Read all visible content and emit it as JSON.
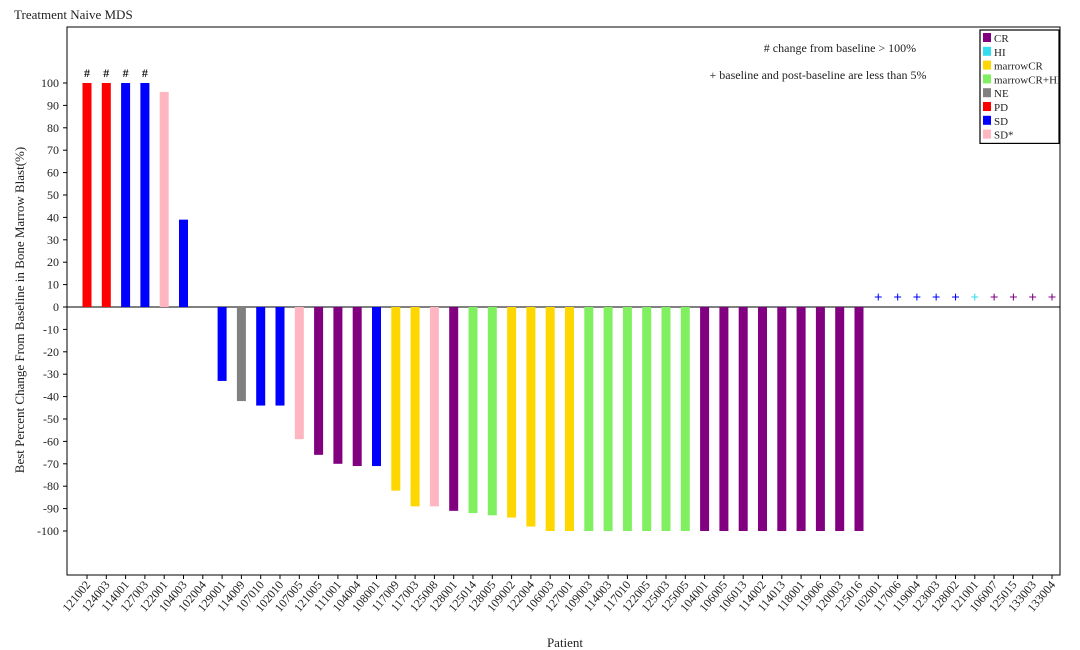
{
  "chart_data": {
    "type": "bar",
    "title": "Treatment Naive MDS",
    "xlabel": "Patient",
    "ylabel": "Best Percent Change From Baseline in Bone Marrow Blast(%)",
    "ylim": [
      -100,
      100
    ],
    "yticks": [
      100,
      90,
      80,
      70,
      60,
      50,
      40,
      30,
      20,
      10,
      0,
      -10,
      -20,
      -30,
      -40,
      -50,
      -60,
      -70,
      -80,
      -90,
      -100
    ],
    "grid": false,
    "legend_position": "top-right",
    "response_colors": {
      "CR": "#800080",
      "HI": "#33ddee",
      "marrowCR": "#ffd700",
      "marrowCR+HI": "#80f060",
      "NE": "#808080",
      "PD": "#ff0000",
      "SD": "#0000ff",
      "SD*": "#ffb6c1"
    },
    "legend": [
      "CR",
      "HI",
      "marrowCR",
      "marrowCR+HI",
      "NE",
      "PD",
      "SD",
      "SD*"
    ],
    "annotations": [
      "# change from baseline > 100%",
      "+ baseline and post-baseline are less than 5%"
    ],
    "hash_marker": "#",
    "plus_marker": "+",
    "bars": [
      {
        "patient": "121002",
        "value": 100,
        "response": "PD",
        "marker": "#"
      },
      {
        "patient": "124003",
        "value": 100,
        "response": "PD",
        "marker": "#"
      },
      {
        "patient": "114001",
        "value": 100,
        "response": "SD",
        "marker": "#"
      },
      {
        "patient": "127003",
        "value": 100,
        "response": "SD",
        "marker": "#"
      },
      {
        "patient": "122001",
        "value": 96,
        "response": "SD*"
      },
      {
        "patient": "104003",
        "value": 39,
        "response": "SD"
      },
      {
        "patient": "102004",
        "value": 0,
        "response": "SD"
      },
      {
        "patient": "129001",
        "value": -33,
        "response": "SD"
      },
      {
        "patient": "114009",
        "value": -42,
        "response": "NE"
      },
      {
        "patient": "107010",
        "value": -44,
        "response": "SD"
      },
      {
        "patient": "102010",
        "value": -44,
        "response": "SD"
      },
      {
        "patient": "107005",
        "value": -59,
        "response": "SD*"
      },
      {
        "patient": "121005",
        "value": -66,
        "response": "CR"
      },
      {
        "patient": "111001",
        "value": -70,
        "response": "CR"
      },
      {
        "patient": "104004",
        "value": -71,
        "response": "CR"
      },
      {
        "patient": "108001",
        "value": -71,
        "response": "SD"
      },
      {
        "patient": "117009",
        "value": -82,
        "response": "marrowCR"
      },
      {
        "patient": "117003",
        "value": -89,
        "response": "marrowCR"
      },
      {
        "patient": "125008",
        "value": -89,
        "response": "SD*"
      },
      {
        "patient": "128001",
        "value": -91,
        "response": "CR"
      },
      {
        "patient": "125014",
        "value": -92,
        "response": "marrowCR+HI"
      },
      {
        "patient": "128005",
        "value": -93,
        "response": "marrowCR+HI"
      },
      {
        "patient": "109002",
        "value": -94,
        "response": "marrowCR"
      },
      {
        "patient": "122004",
        "value": -98,
        "response": "marrowCR"
      },
      {
        "patient": "106003",
        "value": -100,
        "response": "marrowCR"
      },
      {
        "patient": "127001",
        "value": -100,
        "response": "marrowCR"
      },
      {
        "patient": "109003",
        "value": -100,
        "response": "marrowCR+HI"
      },
      {
        "patient": "114003",
        "value": -100,
        "response": "marrowCR+HI"
      },
      {
        "patient": "117010",
        "value": -100,
        "response": "marrowCR+HI"
      },
      {
        "patient": "122005",
        "value": -100,
        "response": "marrowCR+HI"
      },
      {
        "patient": "125003",
        "value": -100,
        "response": "marrowCR+HI"
      },
      {
        "patient": "125005",
        "value": -100,
        "response": "marrowCR+HI"
      },
      {
        "patient": "104001",
        "value": -100,
        "response": "CR"
      },
      {
        "patient": "106005",
        "value": -100,
        "response": "CR"
      },
      {
        "patient": "106013",
        "value": -100,
        "response": "CR"
      },
      {
        "patient": "114002",
        "value": -100,
        "response": "CR"
      },
      {
        "patient": "114013",
        "value": -100,
        "response": "CR"
      },
      {
        "patient": "118001",
        "value": -100,
        "response": "CR"
      },
      {
        "patient": "119006",
        "value": -100,
        "response": "CR"
      },
      {
        "patient": "120003",
        "value": -100,
        "response": "CR"
      },
      {
        "patient": "125016",
        "value": -100,
        "response": "CR"
      },
      {
        "patient": "102001",
        "value": 0,
        "response": "SD",
        "marker": "+"
      },
      {
        "patient": "117006",
        "value": 0,
        "response": "SD",
        "marker": "+"
      },
      {
        "patient": "119004",
        "value": 0,
        "response": "SD",
        "marker": "+"
      },
      {
        "patient": "123003",
        "value": 0,
        "response": "SD",
        "marker": "+"
      },
      {
        "patient": "128002",
        "value": 0,
        "response": "SD",
        "marker": "+"
      },
      {
        "patient": "121001",
        "value": 0,
        "response": "HI",
        "marker": "+"
      },
      {
        "patient": "106007",
        "value": 0,
        "response": "CR",
        "marker": "+"
      },
      {
        "patient": "125015",
        "value": 0,
        "response": "CR",
        "marker": "+"
      },
      {
        "patient": "133003",
        "value": 0,
        "response": "CR",
        "marker": "+"
      },
      {
        "patient": "133004",
        "value": 0,
        "response": "CR",
        "marker": "+"
      }
    ]
  }
}
